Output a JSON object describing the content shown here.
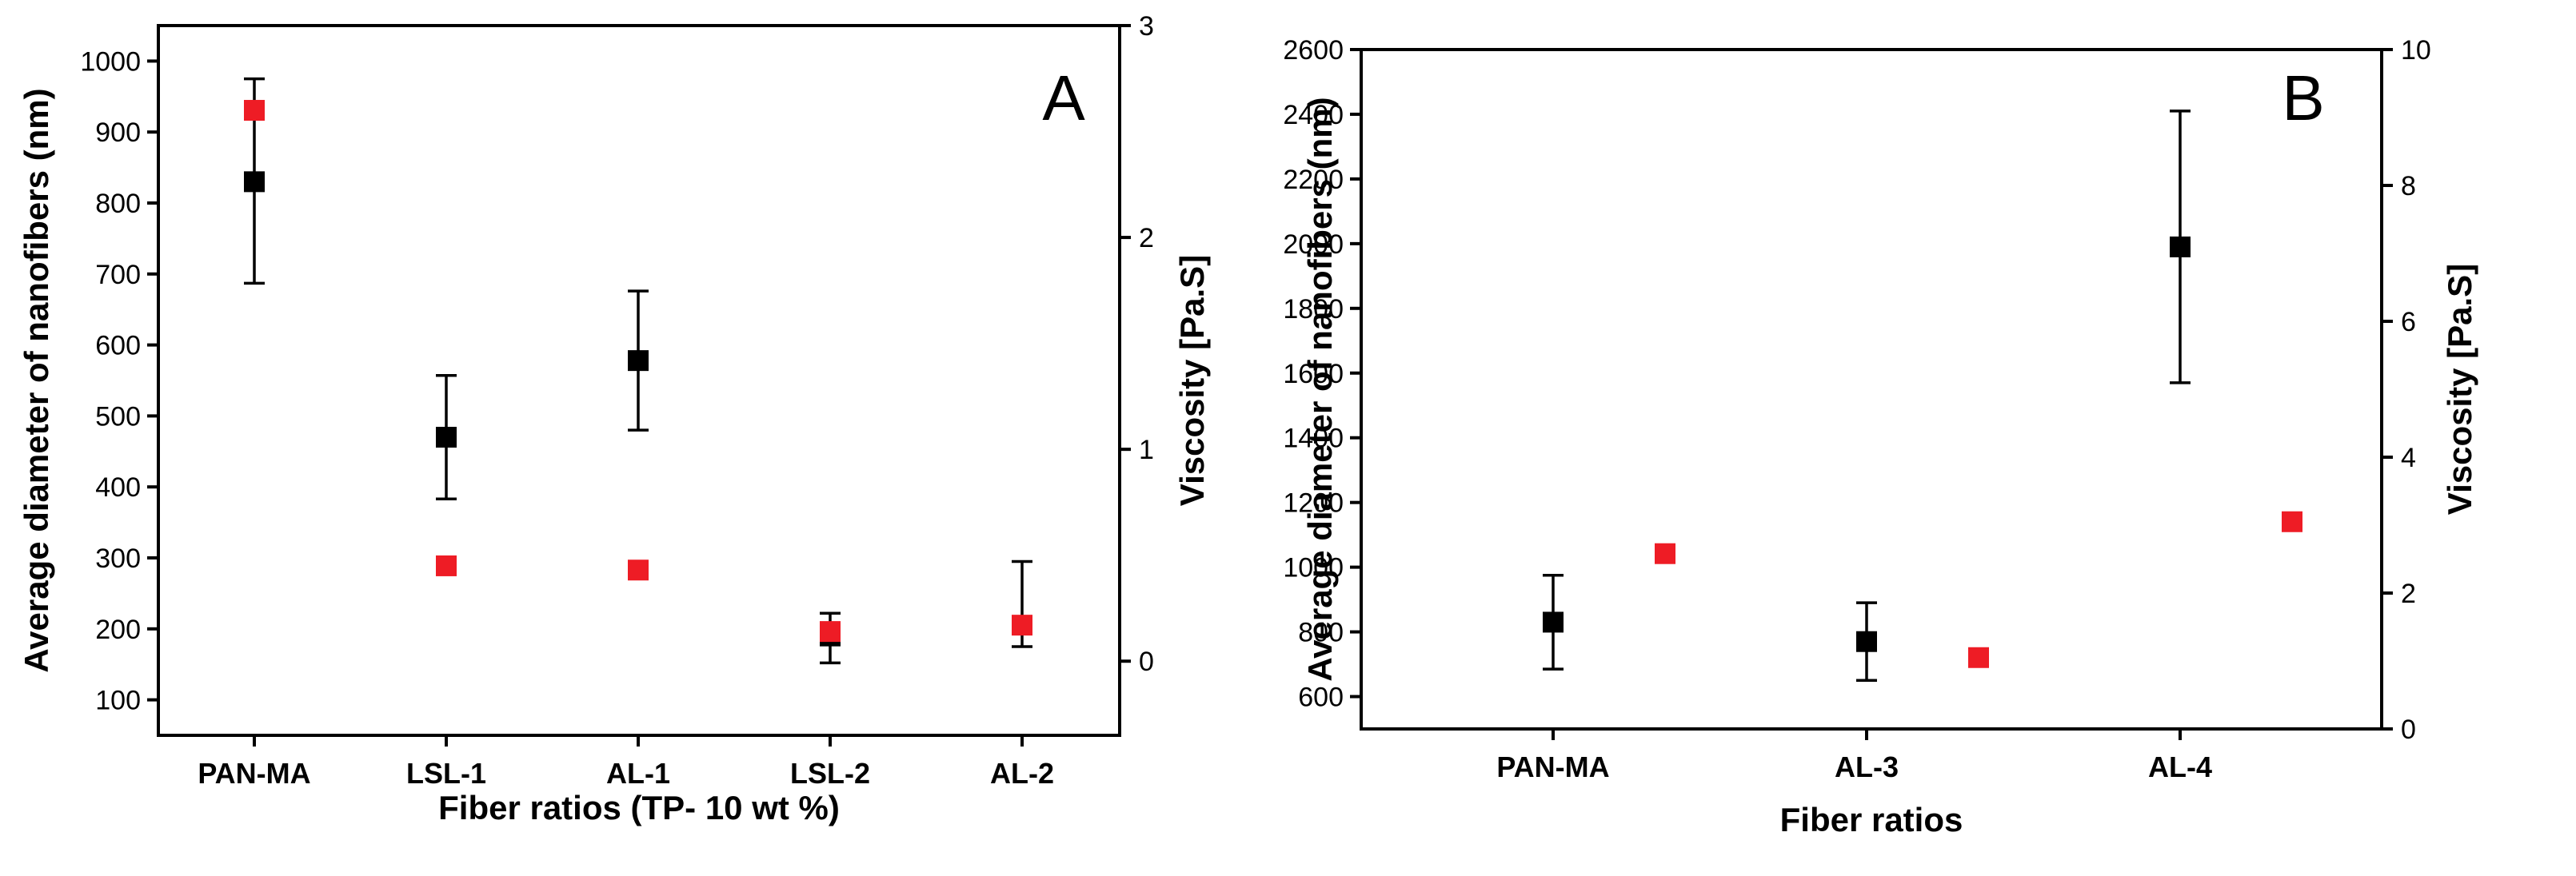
{
  "chart_data": [
    {
      "type": "scatter",
      "panel_label": "A",
      "categories": [
        "PAN-MA",
        "LSL-1",
        "AL-1",
        "LSL-2",
        "AL-2"
      ],
      "xlabel": "Fiber ratios (TP- 10 wt %)",
      "ylabel": "Average diameter of nanofibers (nm)",
      "y2label": "Viscosity [Pa.S]",
      "ylim": [
        50,
        1050
      ],
      "yticks": [
        100,
        200,
        300,
        400,
        500,
        600,
        700,
        800,
        900,
        1000
      ],
      "y2lim": [
        -0.35,
        3.0
      ],
      "y2ticks": [
        0,
        1,
        2,
        3
      ],
      "series": [
        {
          "name": "Average diameter",
          "axis": "left",
          "color": "#000000",
          "values": [
            830,
            470,
            578,
            190,
            null
          ],
          "err_low": [
            687,
            383,
            480,
            152,
            175
          ],
          "err_high": [
            975,
            557,
            676,
            222,
            295
          ]
        },
        {
          "name": "Viscosity",
          "axis": "right",
          "color": "#ee1c25",
          "values": [
            2.6,
            0.45,
            0.43,
            0.14,
            0.17
          ]
        }
      ]
    },
    {
      "type": "scatter",
      "panel_label": "B",
      "categories": [
        "PAN-MA",
        "AL-3",
        "AL-4"
      ],
      "xlabel": "Fiber ratios",
      "ylabel": "Average diameter of nanofibers (nm)",
      "y2label": "Viscosity [Pa.S]",
      "ylim": [
        500,
        2600
      ],
      "yticks": [
        600,
        800,
        1000,
        1200,
        1400,
        1600,
        1800,
        2000,
        2200,
        2400,
        2600
      ],
      "y2lim": [
        0,
        10
      ],
      "y2ticks": [
        0,
        2,
        4,
        6,
        8,
        10
      ],
      "series": [
        {
          "name": "Average diameter",
          "axis": "left",
          "color": "#000000",
          "values": [
            830,
            770,
            1990
          ],
          "err_low": [
            685,
            650,
            1570
          ],
          "err_high": [
            975,
            890,
            2410
          ]
        },
        {
          "name": "Viscosity",
          "axis": "right",
          "color": "#ee1c25",
          "values": [
            2.58,
            1.05,
            3.05
          ]
        }
      ]
    }
  ]
}
